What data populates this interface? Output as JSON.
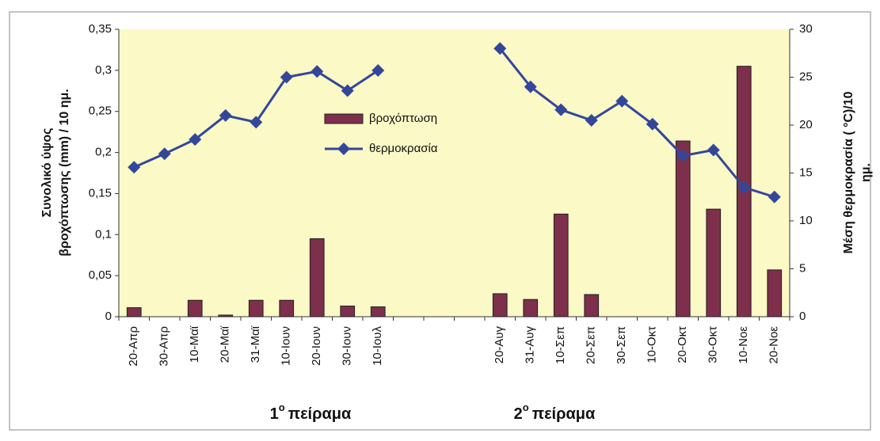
{
  "chart_data": {
    "type": "bar-line",
    "categories": [
      "20-Απρ",
      "30-Απρ",
      "10-Μαϊ",
      "20-Μαϊ",
      "31-Μαϊ",
      "10-Ιουν",
      "20-Ιουν",
      "30-Ιουν",
      "10-Ιουλ",
      null,
      null,
      null,
      "20-Αυγ",
      "31-Αυγ",
      "10-Σεπ",
      "20-Σεπ",
      "30-Σεπ",
      "10-Οκτ",
      "20-Οκτ",
      "30-Οκτ",
      "10-Νοε",
      "20-Νοε"
    ],
    "series": [
      {
        "name": "βροχόπτωση",
        "type": "bar",
        "color": "#7d2f4c",
        "values": [
          0.011,
          0,
          0.02,
          0.002,
          0.02,
          0.02,
          0.095,
          0.013,
          0.012,
          null,
          null,
          null,
          0.028,
          0.021,
          0.125,
          0.027,
          0,
          0,
          0.214,
          0.131,
          0.305,
          0.057
        ]
      },
      {
        "name": "θερμοκρασία",
        "type": "line",
        "axis": "y2",
        "color": "#33479a",
        "values": [
          15.6,
          17,
          18.5,
          21,
          20.3,
          25,
          25.6,
          23.6,
          25.7,
          null,
          null,
          null,
          28,
          24,
          21.6,
          20.5,
          22.5,
          20.1,
          16.8,
          17.4,
          13.5,
          12.5
        ]
      }
    ],
    "ylabel": [
      "Συνολικό ύψος",
      "βροχόπτωσης (mm) / 10 ημ."
    ],
    "y2label": [
      "Μέση θερμοκρασία ( °C)/10",
      "ημ."
    ],
    "groups": [
      {
        "number": "1",
        "sup": "ο",
        "text": "πείραμα"
      },
      {
        "number": "2",
        "sup": "ο",
        "text": "πείραμα"
      }
    ],
    "ylim": [
      0,
      0.35
    ],
    "yticks": [
      0,
      {
        "value": 0.05,
        "label": "0,05"
      },
      {
        "value": 0.1,
        "label": "0,1"
      },
      {
        "value": 0.15,
        "label": "0,15"
      },
      {
        "value": 0.2,
        "label": "0,2"
      },
      {
        "value": 0.25,
        "label": "0,25"
      },
      {
        "value": 0.3,
        "label": "0,3"
      },
      {
        "value": 0.35,
        "label": "0,35"
      }
    ],
    "y2lim": [
      0,
      30
    ],
    "y2ticks": [
      0,
      5,
      10,
      15,
      20,
      25,
      30
    ],
    "plot_background": "#fbf9c6",
    "legend": "center"
  }
}
